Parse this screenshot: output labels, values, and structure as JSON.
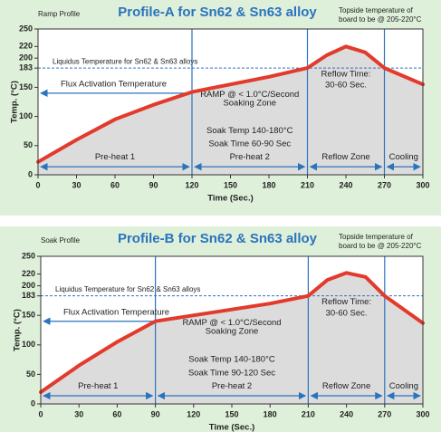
{
  "chart_data": [
    {
      "type": "line",
      "subtitle": "Ramp Profile",
      "title": "Profile-A for Sn62 & Sn63 alloy",
      "note": "Topside temperature of board to be @ 205-220°C",
      "xlabel": "Time (Sec.)",
      "ylabel": "Temp. (°C)",
      "x": [
        0,
        30,
        60,
        90,
        120,
        150,
        180,
        210,
        225,
        240,
        255,
        270,
        300
      ],
      "values": [
        22,
        60,
        95,
        120,
        142,
        155,
        168,
        183,
        205,
        220,
        210,
        183,
        155
      ],
      "color": "#e23a2c",
      "fill": "#dcdcdc",
      "xlim": [
        0,
        300
      ],
      "ylim": [
        0,
        250
      ],
      "xticks": [
        0,
        30,
        60,
        90,
        120,
        150,
        180,
        210,
        240,
        270,
        300
      ],
      "yticks": [
        0,
        50,
        100,
        150,
        183,
        200,
        220,
        250
      ],
      "liquidus": {
        "label": "Liquidus Temperature for Sn62 & Sn63 alloys",
        "value": 183
      },
      "flux": {
        "label": "Flux Activation Temperature",
        "start": 0,
        "end": 120
      },
      "zones": [
        {
          "label": "Pre-heat 1",
          "start": 0,
          "end": 120
        },
        {
          "label": "Pre-heat 2",
          "start": 120,
          "end": 210
        },
        {
          "label": "Reflow Zone",
          "start": 210,
          "end": 270
        },
        {
          "label": "Cooling",
          "start": 270,
          "end": 300
        }
      ],
      "soak": {
        "ramp": "RAMP @ < 1.0°C/Second",
        "zone": "Soaking Zone",
        "temp": "Soak Temp 140-180°C",
        "time": "Soak Time 60-90 Sec"
      },
      "reflow_time": [
        "Reflow Time:",
        "30-60 Sec."
      ]
    },
    {
      "type": "line",
      "subtitle": "Soak Profile",
      "title": "Profile-B for Sn62 & Sn63 alloy",
      "note": "Topside temperature of board to be @ 205-220°C",
      "xlabel": "Time (Sec.)",
      "ylabel": "Temp. (°C)",
      "x": [
        0,
        30,
        60,
        90,
        120,
        150,
        180,
        210,
        225,
        240,
        255,
        270,
        300
      ],
      "values": [
        20,
        65,
        105,
        140,
        150,
        160,
        170,
        183,
        210,
        222,
        215,
        183,
        137
      ],
      "color": "#e23a2c",
      "fill": "#dcdcdc",
      "xlim": [
        0,
        300
      ],
      "ylim": [
        0,
        250
      ],
      "xticks": [
        0,
        30,
        60,
        90,
        120,
        150,
        180,
        210,
        240,
        270,
        300
      ],
      "yticks": [
        0,
        50,
        100,
        150,
        183,
        200,
        220,
        250
      ],
      "liquidus": {
        "label": "Liquidus Temperature for Sn62 & Sn63 alloys",
        "value": 183
      },
      "flux": {
        "label": "Flux Activation Temperature",
        "start": 0,
        "end": 90
      },
      "zones": [
        {
          "label": "Pre-heat 1",
          "start": 0,
          "end": 90
        },
        {
          "label": "Pre-heat 2",
          "start": 90,
          "end": 210
        },
        {
          "label": "Reflow Zone",
          "start": 210,
          "end": 270
        },
        {
          "label": "Cooling",
          "start": 270,
          "end": 300
        }
      ],
      "soak": {
        "ramp": "RAMP @ < 1.0°C/Second",
        "zone": "Soaking Zone",
        "temp": "Soak Temp 140-180°C",
        "time": "Soak Time 90-120 Sec"
      },
      "reflow_time": [
        "Reflow Time:",
        "30-60 Sec."
      ]
    }
  ]
}
